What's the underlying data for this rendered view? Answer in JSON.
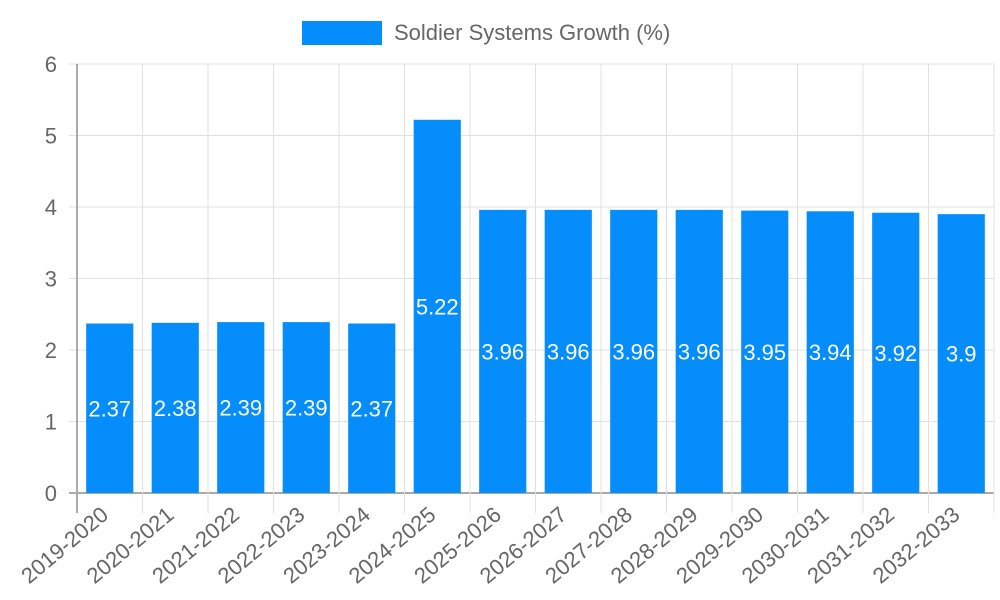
{
  "chart_data": {
    "type": "bar",
    "title": "",
    "xlabel": "",
    "ylabel": "",
    "categories": [
      "2019-2020",
      "2020-2021",
      "2021-2022",
      "2022-2023",
      "2023-2024",
      "2024-2025",
      "2025-2026",
      "2026-2027",
      "2027-2028",
      "2028-2029",
      "2029-2030",
      "2030-2031",
      "2031-2032",
      "2032-2033"
    ],
    "series": [
      {
        "name": "Soldier Systems Growth (%)",
        "color": "#058DFC",
        "values": [
          2.37,
          2.38,
          2.39,
          2.39,
          2.37,
          5.22,
          3.96,
          3.96,
          3.96,
          3.96,
          3.95,
          3.94,
          3.92,
          3.9
        ]
      }
    ],
    "ylim": [
      0,
      6
    ],
    "yticks": [
      0,
      1,
      2,
      3,
      4,
      5,
      6
    ],
    "grid": true,
    "legend_position": "top",
    "data_labels": true
  },
  "legend": {
    "label": "Soldier Systems Growth (%)"
  }
}
